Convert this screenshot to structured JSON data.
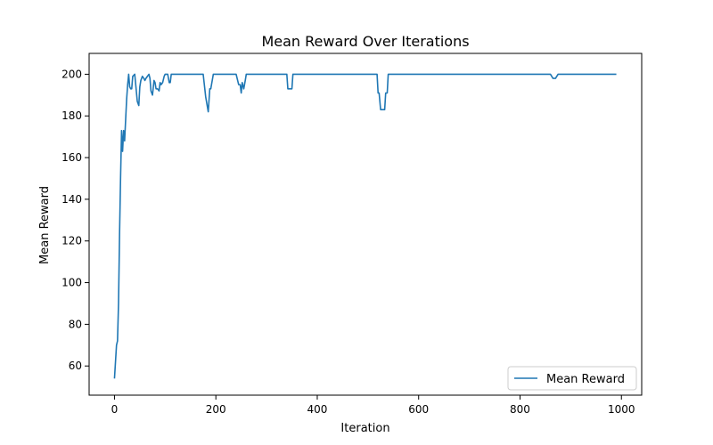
{
  "chart_data": {
    "type": "line",
    "title": "Mean Reward Over Iterations",
    "xlabel": "Iteration",
    "ylabel": "Mean Reward",
    "xlim": [
      -50,
      1040
    ],
    "ylim": [
      46,
      210
    ],
    "xticks": [
      0,
      200,
      400,
      600,
      800,
      1000
    ],
    "yticks": [
      60,
      80,
      100,
      120,
      140,
      160,
      180,
      200
    ],
    "grid": false,
    "legend": {
      "position": "bottom-right",
      "entries": [
        "Mean Reward"
      ]
    },
    "series": [
      {
        "name": "Mean Reward",
        "color": "#1f77b4",
        "x": [
          0,
          2,
          4,
          6,
          8,
          10,
          12,
          14,
          16,
          18,
          20,
          22,
          24,
          26,
          28,
          30,
          32,
          34,
          36,
          40,
          45,
          48,
          50,
          52,
          55,
          58,
          60,
          62,
          65,
          68,
          70,
          72,
          75,
          78,
          80,
          82,
          85,
          88,
          90,
          92,
          95,
          98,
          100,
          102,
          105,
          108,
          110,
          112,
          115,
          118,
          120,
          122,
          125,
          128,
          130,
          135,
          140,
          145,
          150,
          155,
          160,
          165,
          170,
          175,
          180,
          185,
          188,
          190,
          195,
          200,
          205,
          210,
          220,
          230,
          240,
          245,
          248,
          250,
          252,
          255,
          258,
          260,
          265,
          270,
          280,
          300,
          320,
          340,
          342,
          345,
          350,
          352,
          355,
          360,
          380,
          400,
          420,
          440,
          460,
          480,
          500,
          515,
          518,
          520,
          522,
          525,
          530,
          533,
          535,
          538,
          540,
          560,
          600,
          700,
          800,
          860,
          865,
          870,
          875,
          880,
          900,
          950,
          990
        ],
        "y": [
          54,
          62,
          70,
          72,
          90,
          123,
          150,
          173,
          163,
          173,
          168,
          178,
          188,
          195,
          200,
          194,
          193,
          193,
          199,
          200,
          187,
          185,
          194,
          197,
          199,
          198,
          197,
          198,
          199,
          200,
          198,
          192,
          190,
          197,
          196,
          193,
          193,
          192,
          196,
          195,
          196,
          199,
          200,
          200,
          200,
          196,
          196,
          200,
          200,
          200,
          200,
          200,
          200,
          200,
          200,
          200,
          200,
          200,
          200,
          200,
          200,
          200,
          200,
          200,
          189,
          182,
          193,
          193,
          200,
          200,
          200,
          200,
          200,
          200,
          200,
          195,
          195,
          191,
          196,
          193,
          197,
          200,
          200,
          200,
          200,
          200,
          200,
          200,
          193,
          193,
          193,
          200,
          200,
          200,
          200,
          200,
          200,
          200,
          200,
          200,
          200,
          200,
          200,
          191,
          191,
          183,
          183,
          183,
          191,
          191,
          200,
          200,
          200,
          200,
          200,
          200,
          198,
          198,
          200,
          200,
          200,
          200,
          200
        ]
      }
    ]
  }
}
